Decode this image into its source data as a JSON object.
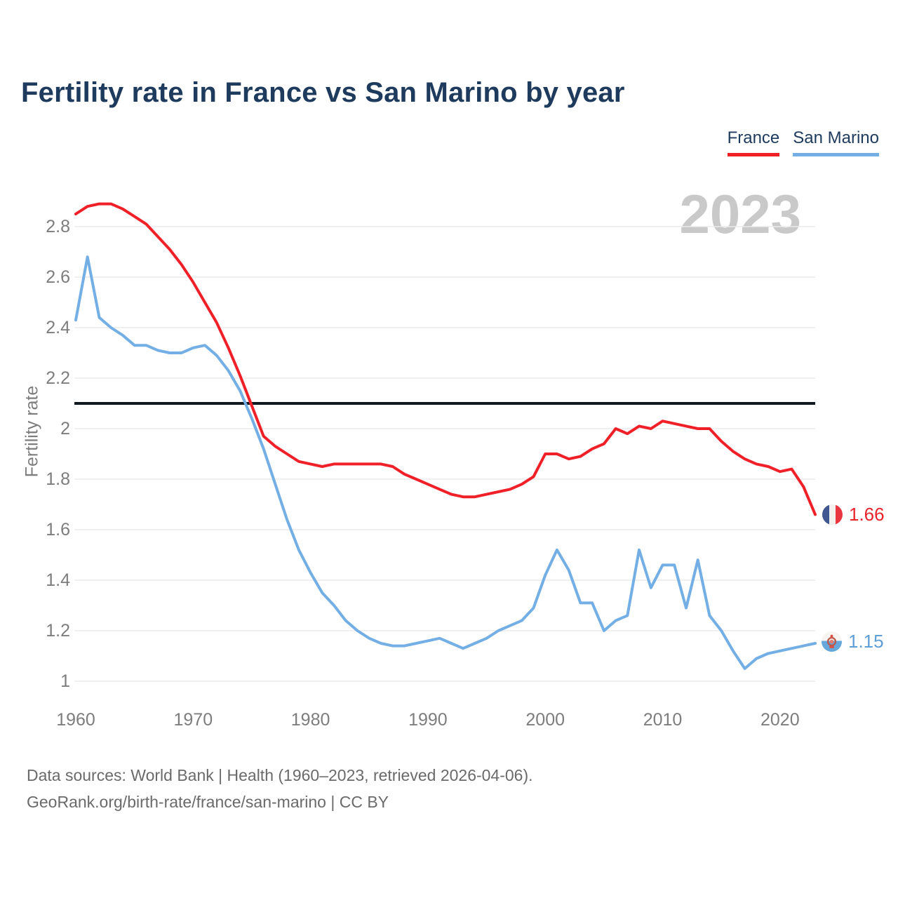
{
  "page": {
    "title": "Fertility rate in France vs San Marino by year",
    "watermark_year": "2023",
    "footer_line1": "Data sources: World Bank | Health (1960–2023, retrieved 2026-04-06).",
    "footer_line2": "GeoRank.org/birth-rate/france/san-marino | CC BY"
  },
  "legend": [
    {
      "label": "France",
      "color": "#ef2028"
    },
    {
      "label": "San Marino",
      "color": "#73afe4"
    }
  ],
  "colors": {
    "france_line": "#ef2028",
    "san_marino_line": "#73afe4",
    "reference_line": "#101820",
    "title_text": "#1e3a5c",
    "axis_text": "#7d7d7d",
    "gridline": "#ebebeb",
    "watermark": "#c9c9c9",
    "footer_text": "#6a6a6a"
  },
  "chart_data": {
    "type": "line",
    "title": "Fertility rate in France vs San Marino by year",
    "xlabel": "",
    "ylabel": "Fertility rate",
    "grid": true,
    "legend_position": "top-right",
    "xlim": [
      1960,
      2023
    ],
    "ylim": [
      0.95,
      2.95
    ],
    "x_ticks": [
      1960,
      1970,
      1980,
      1990,
      2000,
      2010,
      2020
    ],
    "y_ticks": [
      2.8,
      2.6,
      2.4,
      2.2,
      2,
      1.8,
      1.6,
      1.4,
      1.2,
      1
    ],
    "reference_line": 2.1,
    "x": [
      1960,
      1961,
      1962,
      1963,
      1964,
      1965,
      1966,
      1967,
      1968,
      1969,
      1970,
      1971,
      1972,
      1973,
      1974,
      1975,
      1976,
      1977,
      1978,
      1979,
      1980,
      1981,
      1982,
      1983,
      1984,
      1985,
      1986,
      1987,
      1988,
      1989,
      1990,
      1991,
      1992,
      1993,
      1994,
      1995,
      1996,
      1997,
      1998,
      1999,
      2000,
      2001,
      2002,
      2003,
      2004,
      2005,
      2006,
      2007,
      2008,
      2009,
      2010,
      2011,
      2012,
      2013,
      2014,
      2015,
      2016,
      2017,
      2018,
      2019,
      2020,
      2021,
      2022,
      2023
    ],
    "series": [
      {
        "name": "France",
        "color": "#ef2028",
        "end_label": "1.66",
        "values": [
          2.85,
          2.88,
          2.89,
          2.89,
          2.87,
          2.84,
          2.81,
          2.76,
          2.71,
          2.65,
          2.58,
          2.5,
          2.42,
          2.32,
          2.21,
          2.09,
          1.97,
          1.93,
          1.9,
          1.87,
          1.86,
          1.85,
          1.86,
          1.86,
          1.86,
          1.86,
          1.86,
          1.85,
          1.82,
          1.8,
          1.78,
          1.76,
          1.74,
          1.73,
          1.73,
          1.74,
          1.75,
          1.76,
          1.78,
          1.81,
          1.9,
          1.9,
          1.88,
          1.89,
          1.92,
          1.94,
          2.0,
          1.98,
          2.01,
          2.0,
          2.03,
          2.02,
          2.01,
          2.0,
          2.0,
          1.95,
          1.91,
          1.88,
          1.86,
          1.85,
          1.83,
          1.84,
          1.77,
          1.66
        ]
      },
      {
        "name": "San Marino",
        "color": "#73afe4",
        "end_label": "1.15",
        "values": [
          2.43,
          2.68,
          2.44,
          2.4,
          2.37,
          2.33,
          2.33,
          2.31,
          2.3,
          2.3,
          2.32,
          2.33,
          2.29,
          2.23,
          2.15,
          2.04,
          1.92,
          1.78,
          1.64,
          1.52,
          1.43,
          1.35,
          1.3,
          1.24,
          1.2,
          1.17,
          1.15,
          1.14,
          1.14,
          1.15,
          1.16,
          1.17,
          1.15,
          1.13,
          1.15,
          1.17,
          1.2,
          1.22,
          1.24,
          1.29,
          1.42,
          1.52,
          1.44,
          1.31,
          1.31,
          1.2,
          1.24,
          1.26,
          1.52,
          1.37,
          1.46,
          1.46,
          1.29,
          1.48,
          1.26,
          1.2,
          1.12,
          1.05,
          1.09,
          1.11,
          1.12,
          1.13,
          1.14,
          1.15
        ]
      }
    ]
  }
}
